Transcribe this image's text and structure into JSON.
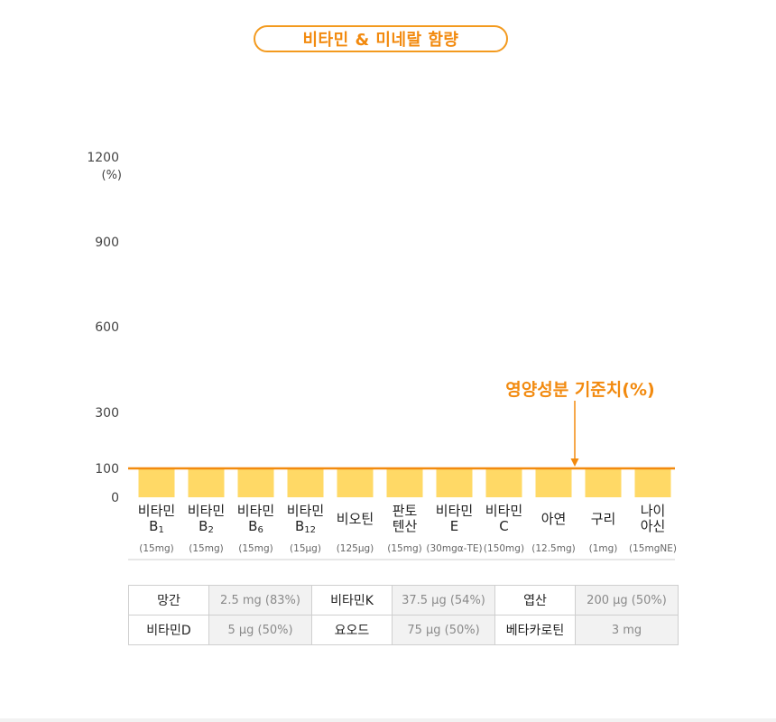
{
  "title": "비타민 & 미네랄 함량",
  "colors": {
    "accent": "#f28a0f",
    "bar": "#ffd966",
    "reference_line": "#f28a0f",
    "table_border": "#cfcfcf",
    "table_value_bg": "#f2f2f2"
  },
  "chart_data": {
    "type": "bar",
    "ylabel": "(%)",
    "ylim": [
      0,
      1200
    ],
    "yticks": [
      0,
      100,
      300,
      600,
      900,
      1200
    ],
    "grid": false,
    "categories": [
      {
        "name": "비타민",
        "sub": "B",
        "sub_index": "1",
        "dose": "(15mg)"
      },
      {
        "name": "비타민",
        "sub": "B",
        "sub_index": "2",
        "dose": "(15mg)"
      },
      {
        "name": "비타민",
        "sub": "B",
        "sub_index": "6",
        "dose": "(15mg)"
      },
      {
        "name": "비타민",
        "sub": "B",
        "sub_index": "12",
        "dose": "(15μg)"
      },
      {
        "name": "비오틴",
        "sub": "",
        "sub_index": "",
        "dose": "(125μg)"
      },
      {
        "name": "판토",
        "sub": "텐산",
        "sub_index": "",
        "dose": "(15mg)"
      },
      {
        "name": "비타민",
        "sub": "E",
        "sub_index": "",
        "dose": "(30mgα-TE)"
      },
      {
        "name": "비타민",
        "sub": "C",
        "sub_index": "",
        "dose": "(150mg)"
      },
      {
        "name": "아연",
        "sub": "",
        "sub_index": "",
        "dose": "(12.5mg)"
      },
      {
        "name": "구리",
        "sub": "",
        "sub_index": "",
        "dose": "(1mg)"
      },
      {
        "name": "나이",
        "sub": "아신",
        "sub_index": "",
        "dose": "(15mgNE)"
      }
    ],
    "values": [
      100,
      100,
      100,
      100,
      100,
      100,
      100,
      100,
      100,
      100,
      100
    ],
    "reference": {
      "value": 100,
      "label": "영양성분 기준치(%)"
    }
  },
  "table": {
    "rows": [
      [
        {
          "name": "망간",
          "value": "2.5 mg (83%)"
        },
        {
          "name": "비타민K",
          "value": "37.5 μg (54%)"
        },
        {
          "name": "엽산",
          "value": "200 μg (50%)"
        }
      ],
      [
        {
          "name": "비타민D",
          "value": "5 μg (50%)"
        },
        {
          "name": "요오드",
          "value": "75 μg (50%)"
        },
        {
          "name": "베타카로틴",
          "value": "3 mg"
        }
      ]
    ]
  }
}
